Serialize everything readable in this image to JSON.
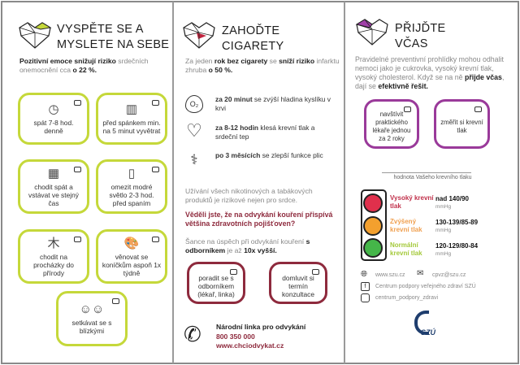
{
  "colors": {
    "green": "#c5d83a",
    "red": "#8e2a3d",
    "purple": "#9a3a9a",
    "high": "#e0304c",
    "raised": "#f3a02e",
    "normal": "#45b649"
  },
  "col1": {
    "title1": "VYSPĚTE SE A",
    "title2": "MYSLETE NA SEBE",
    "intro": [
      {
        "t": "Pozitivní emoce snižují riziko",
        "b": true
      },
      {
        "t": " srdečních onemocnění cca ",
        "b": false
      },
      {
        "t": "o 22 %.",
        "b": true
      }
    ],
    "boxes": [
      {
        "icon": "clock-icon",
        "glyph": "◷",
        "text": "spát 7-8 hod. denně"
      },
      {
        "icon": "window-icon",
        "glyph": "▥",
        "text": "před spánkem min. na 5 minut vyvětrat"
      },
      {
        "icon": "calendar-icon",
        "glyph": "▦",
        "text": "chodit spát a vstávat ve stejný čas"
      },
      {
        "icon": "phone-icon",
        "glyph": "▯",
        "text": "omezit modré světlo 2-3 hod. před spaním"
      },
      {
        "icon": "trees-icon",
        "glyph": "⽊",
        "text": "chodit na procházky do přírody"
      },
      {
        "icon": "palette-icon",
        "glyph": "🎨",
        "text": "věnovat se koníčkům aspoň 1x týdně"
      },
      {
        "icon": "people-icon",
        "glyph": "☺☺",
        "text": "setkávat se s blízkými"
      }
    ]
  },
  "col2": {
    "title1": "ZAHOĎTE",
    "title2": "CIGARETY",
    "intro": [
      {
        "t": "Za jeden ",
        "b": false
      },
      {
        "t": "rok bez cigarety",
        "b": true
      },
      {
        "t": " se ",
        "b": false
      },
      {
        "t": "sníží riziko",
        "b": true
      },
      {
        "t": " infarktu zhruba ",
        "b": false
      },
      {
        "t": "o 50 %.",
        "b": true
      }
    ],
    "benefits": [
      {
        "icon": "oxygen-drop-icon",
        "glyph": "O₂",
        "bold": "za 20 minut",
        "rest": " se zvýší hladina kyslíku v krvi"
      },
      {
        "icon": "heart-pulse-icon",
        "glyph": "♡",
        "bold": "za 8-12 hodin",
        "rest": " klesá krevní tlak a srdeční tep"
      },
      {
        "icon": "lungs-icon",
        "glyph": "⚕",
        "bold": "po 3 měsících",
        "rest": " se zlepší funkce plic"
      }
    ],
    "note": "Užívání všech nikotinových a tabákových produktů je rizikové nejen pro srdce.",
    "question": "Věděli jste, že na odvykání kouření přispívá většina zdravotních pojišťoven?",
    "chance": [
      {
        "t": "Šance na úspěch při odvykání kouření ",
        "b": false
      },
      {
        "t": "s odborníkem",
        "b": true
      },
      {
        "t": " je až ",
        "b": false
      },
      {
        "t": "10x vyšší.",
        "b": true
      }
    ],
    "boxes": [
      {
        "text": "poradit se s odborníkem (lékař, linka)"
      },
      {
        "text": "domluvit si termín konzultace"
      }
    ],
    "hotline": {
      "label": "Národní linka pro odvykání",
      "phone": "800 350 000",
      "web": "www.chciodvykat.cz"
    }
  },
  "col3": {
    "title1": "PŘIJĎTE",
    "title2": "VČAS",
    "intro": [
      {
        "t": "Pravidelné preventivní prohlídky mohou odhalit nemoci jako je cukrovka, vysoký krevní tlak, vysoký cholesterol. Když se na ně ",
        "b": false
      },
      {
        "t": "přijde",
        "b": true
      },
      {
        "t": " ",
        "b": false
      },
      {
        "t": "včas",
        "b": true
      },
      {
        "t": ", dají se ",
        "b": false
      },
      {
        "t": "efektivně řešit.",
        "b": true
      }
    ],
    "boxes": [
      {
        "text": "navštívit praktického lékaře jednou za 2 roky"
      },
      {
        "text": "změřit si krevní tlak"
      }
    ],
    "bp_caption": "hodnota Vašeho krevního tlaku",
    "bp": [
      {
        "label": "Vysoký krevní tlak",
        "value": "nad 140/90",
        "unit": "mmHg"
      },
      {
        "label": "Zvýšený krevní tlak",
        "value": "130-139/85-89",
        "unit": "mmHg"
      },
      {
        "label": "Normální krevní tlak",
        "value": "120-129/80-84",
        "unit": "mmHg"
      }
    ],
    "contacts": {
      "web": "www.szu.cz",
      "email": "cpvz@szu.cz",
      "facebook": "Centrum podpory veřejného zdraví SZÚ",
      "instagram": "centrum_podpory_zdravi"
    },
    "logo_text": "SZÚ"
  }
}
